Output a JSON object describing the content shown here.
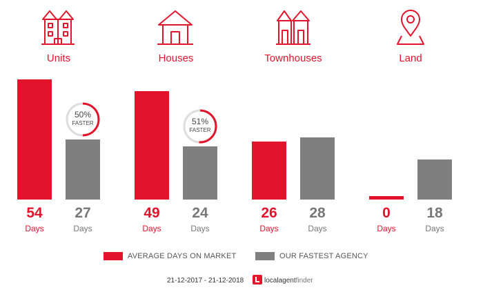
{
  "chart_data": {
    "type": "bar",
    "categories": [
      "Units",
      "Houses",
      "Townhouses",
      "Land"
    ],
    "series": [
      {
        "name": "AVERAGE DAYS ON MARKET",
        "values": [
          54,
          49,
          26,
          0
        ],
        "color": "#e3132c"
      },
      {
        "name": "OUR FASTEST AGENCY",
        "values": [
          27,
          24,
          28,
          18
        ],
        "color": "#7f7f7f"
      }
    ],
    "unit_label": "Days",
    "badges": [
      {
        "category": "Units",
        "percent": "50%",
        "text": "FASTER"
      },
      {
        "category": "Houses",
        "percent": "51%",
        "text": "FASTER"
      }
    ],
    "category_icons": [
      "units-icon",
      "house-icon",
      "townhouses-icon",
      "land-pin-icon"
    ],
    "ylim": [
      0,
      56
    ]
  },
  "footer": {
    "date_range": "21-12-2017 - 21-12-2018",
    "logo_text_1": "localagent",
    "logo_text_2": "finder",
    "logo_icon": "localagentfinder-logo-icon"
  },
  "colors": {
    "accent": "#e3132c",
    "grey": "#7f7f7f"
  }
}
